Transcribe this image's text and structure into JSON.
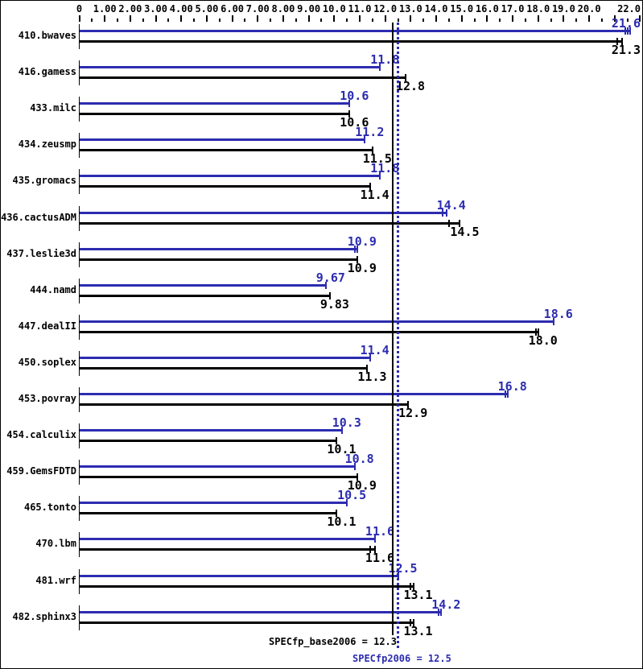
{
  "chart_data": {
    "type": "bar",
    "orientation": "horizontal",
    "title": "",
    "axis": {
      "min": 0,
      "max": 22.2,
      "major_step": 1,
      "minor_step": 0.5,
      "labeled_ticks": [
        {
          "v": 0,
          "label": "0"
        },
        {
          "v": 1,
          "label": "1.00"
        },
        {
          "v": 2,
          "label": "2.00"
        },
        {
          "v": 3,
          "label": "3.00"
        },
        {
          "v": 4,
          "label": "4.00"
        },
        {
          "v": 5,
          "label": "5.00"
        },
        {
          "v": 6,
          "label": "6.00"
        },
        {
          "v": 7,
          "label": "7.00"
        },
        {
          "v": 8,
          "label": "8.00"
        },
        {
          "v": 9,
          "label": "9.00"
        },
        {
          "v": 10,
          "label": "10.0"
        },
        {
          "v": 11,
          "label": "11.0"
        },
        {
          "v": 12,
          "label": "12.0"
        },
        {
          "v": 13,
          "label": "13.0"
        },
        {
          "v": 14,
          "label": "14.0"
        },
        {
          "v": 15,
          "label": "15.0"
        },
        {
          "v": 16,
          "label": "16.0"
        },
        {
          "v": 17,
          "label": "17.0"
        },
        {
          "v": 18,
          "label": "18.0"
        },
        {
          "v": 19,
          "label": "19.0"
        },
        {
          "v": 20,
          "label": "20.0"
        },
        {
          "v": 22,
          "label": "22.0"
        }
      ]
    },
    "series": [
      {
        "key": "peak",
        "name": "SPECfp2006 (peak)",
        "color": "#2c2cb0"
      },
      {
        "key": "base",
        "name": "SPECfp_base2006 (base)",
        "color": "#000000"
      }
    ],
    "benchmarks": [
      {
        "name": "410.bwaves",
        "peak": 21.6,
        "peak_label": "21.6",
        "base": 21.3,
        "base_label": "21.3",
        "peak_ticks": [
          21.42,
          21.52,
          21.6
        ],
        "base_ticks": [
          21.1,
          21.3
        ]
      },
      {
        "name": "416.gamess",
        "peak": 11.8,
        "peak_label": "11.8",
        "base": 12.8,
        "base_label": "12.8"
      },
      {
        "name": "433.milc",
        "peak": 10.6,
        "peak_label": "10.6",
        "base": 10.6,
        "base_label": "10.6"
      },
      {
        "name": "434.zeusmp",
        "peak": 11.2,
        "peak_label": "11.2",
        "base": 11.5,
        "base_label": "11.5"
      },
      {
        "name": "435.gromacs",
        "peak": 11.8,
        "peak_label": "11.8",
        "base": 11.4,
        "base_label": "11.4"
      },
      {
        "name": "436.cactusADM",
        "peak": 14.4,
        "peak_label": "14.4",
        "base": 14.5,
        "base_label": "14.5",
        "peak_ticks": [
          14.25,
          14.4
        ],
        "base_ticks": [
          14.5,
          14.93
        ]
      },
      {
        "name": "437.leslie3d",
        "peak": 10.9,
        "peak_label": "10.9",
        "base": 10.9,
        "base_label": "10.9",
        "peak_ticks": [
          10.8,
          10.9
        ]
      },
      {
        "name": "444.namd",
        "peak": 9.67,
        "peak_label": "9.67",
        "base": 9.83,
        "base_label": "9.83"
      },
      {
        "name": "447.dealII",
        "peak": 18.6,
        "peak_label": "18.6",
        "base": 18.0,
        "base_label": "18.0",
        "base_ticks": [
          17.9,
          18.0
        ]
      },
      {
        "name": "450.soplex",
        "peak": 11.4,
        "peak_label": "11.4",
        "base": 11.3,
        "base_label": "11.3"
      },
      {
        "name": "453.povray",
        "peak": 16.8,
        "peak_label": "16.8",
        "base": 12.9,
        "base_label": "12.9",
        "peak_ticks": [
          16.7,
          16.8
        ]
      },
      {
        "name": "454.calculix",
        "peak": 10.3,
        "peak_label": "10.3",
        "base": 10.1,
        "base_label": "10.1"
      },
      {
        "name": "459.GemsFDTD",
        "peak": 10.8,
        "peak_label": "10.8",
        "base": 10.9,
        "base_label": "10.9"
      },
      {
        "name": "465.tonto",
        "peak": 10.5,
        "peak_label": "10.5",
        "base": 10.1,
        "base_label": "10.1"
      },
      {
        "name": "470.lbm",
        "peak": 11.6,
        "peak_label": "11.6",
        "base": 11.6,
        "base_label": "11.6",
        "base_ticks": [
          11.4,
          11.6
        ]
      },
      {
        "name": "481.wrf",
        "peak": 12.5,
        "peak_label": "12.5",
        "base": 13.1,
        "base_label": "13.1",
        "base_ticks": [
          13.0,
          13.1
        ]
      },
      {
        "name": "482.sphinx3",
        "peak": 14.2,
        "peak_label": "14.2",
        "base": 13.1,
        "base_label": "13.1",
        "peak_ticks": [
          14.1,
          14.2
        ],
        "base_ticks": [
          13.0,
          13.1
        ]
      }
    ],
    "reference_lines": [
      {
        "key": "base",
        "value": 12.3,
        "style": "solid",
        "color": "#000000"
      },
      {
        "key": "peak",
        "value": 12.5,
        "style": "dotted",
        "color": "#2c2cb0"
      }
    ],
    "footer": {
      "base_text": "SPECfp_base2006 = 12.3",
      "peak_text": "SPECfp2006 = 12.5"
    },
    "colors": {
      "peak": "#2c2cb0",
      "base": "#000000",
      "background": "#ffffff",
      "border": "#000000"
    }
  }
}
